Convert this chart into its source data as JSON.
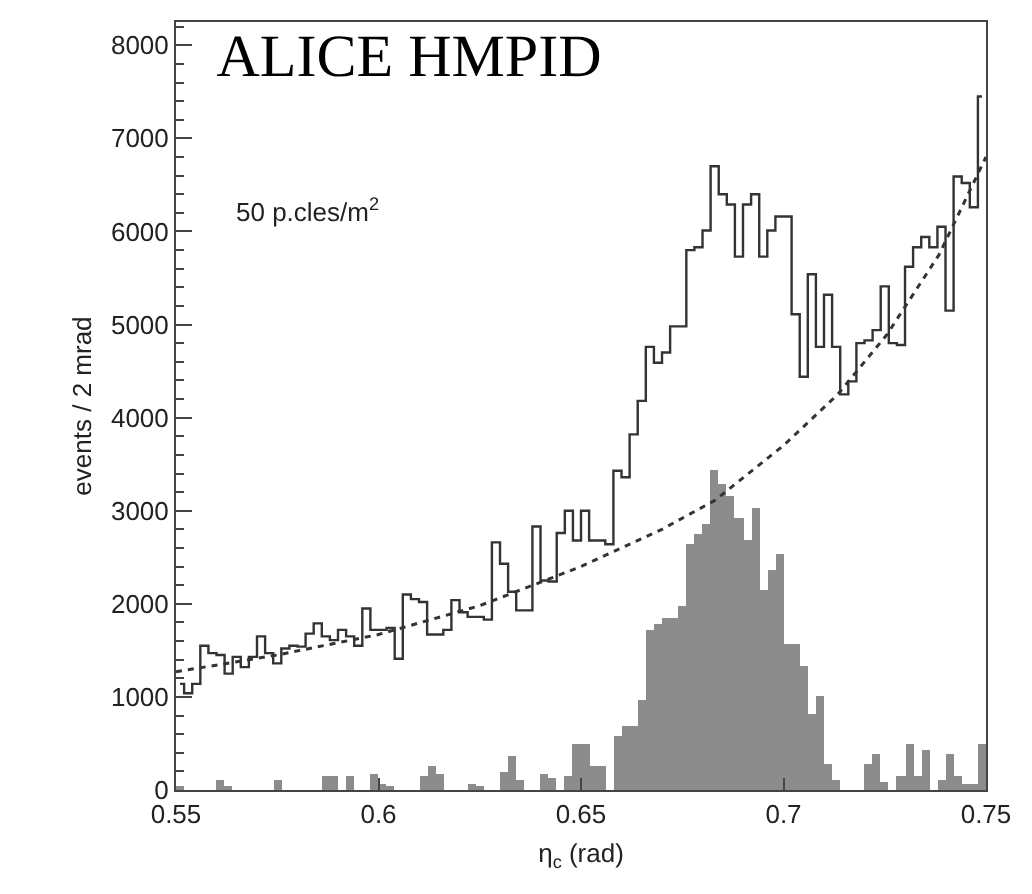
{
  "chart_data": {
    "type": "histogram",
    "title": "ALICE HMPID",
    "xlabel": "η$_{c}$ (rad)",
    "ylabel": "events / 2 mrad",
    "annotations": [
      "50 p.cles/m$^{2}$"
    ],
    "bins": [
      0.55,
      0.552,
      0.554,
      0.556,
      0.558,
      0.56,
      0.562,
      0.564,
      0.566,
      0.568,
      0.57,
      0.572,
      0.574,
      0.576,
      0.578,
      0.58,
      0.582,
      0.584,
      0.586,
      0.588,
      0.59,
      0.592,
      0.594,
      0.596,
      0.598,
      0.6,
      0.602,
      0.604,
      0.606,
      0.608,
      0.61,
      0.612,
      0.614,
      0.616,
      0.618,
      0.62,
      0.622,
      0.624,
      0.626,
      0.628,
      0.63,
      0.632,
      0.634,
      0.636,
      0.638,
      0.64,
      0.642,
      0.644,
      0.646,
      0.648,
      0.65,
      0.652,
      0.654,
      0.656,
      0.658,
      0.66,
      0.662,
      0.664,
      0.666,
      0.668,
      0.67,
      0.672,
      0.674,
      0.676,
      0.678,
      0.68,
      0.682,
      0.684,
      0.686,
      0.688,
      0.69,
      0.692,
      0.694,
      0.696,
      0.698,
      0.7,
      0.702,
      0.704,
      0.706,
      0.708,
      0.71,
      0.712,
      0.714,
      0.716,
      0.718,
      0.72,
      0.722,
      0.724,
      0.726,
      0.728,
      0.73,
      0.732,
      0.734,
      0.736,
      0.738,
      0.74,
      0.742,
      0.744,
      0.746,
      0.748,
      0.75
    ],
    "series": [
      {
        "type": "step",
        "color": "#333333",
        "x": [
          0.551,
          0.553,
          0.555,
          0.557,
          0.559,
          0.561,
          0.563,
          0.565,
          0.567,
          0.569,
          0.571,
          0.573,
          0.575,
          0.577,
          0.579,
          0.581,
          0.583,
          0.585,
          0.587,
          0.589,
          0.591,
          0.593,
          0.595,
          0.597,
          0.599,
          0.601,
          0.603,
          0.605,
          0.607,
          0.609,
          0.611,
          0.613,
          0.615,
          0.617,
          0.619,
          0.621,
          0.623,
          0.625,
          0.627,
          0.629,
          0.631,
          0.633,
          0.635,
          0.637,
          0.639,
          0.641,
          0.643,
          0.645,
          0.647,
          0.649,
          0.651,
          0.653,
          0.655,
          0.657,
          0.659,
          0.661,
          0.663,
          0.665,
          0.667,
          0.669,
          0.671,
          0.673,
          0.675,
          0.677,
          0.679,
          0.681,
          0.683,
          0.685,
          0.687,
          0.689,
          0.691,
          0.693,
          0.695,
          0.697,
          0.699,
          0.701,
          0.703,
          0.705,
          0.707,
          0.709,
          0.711,
          0.713,
          0.715,
          0.717,
          0.719,
          0.721,
          0.723,
          0.725,
          0.727,
          0.729,
          0.731,
          0.733,
          0.735,
          0.737,
          0.739,
          0.741,
          0.743,
          0.745,
          0.747,
          0.749
        ],
        "values": [
          1140,
          1040,
          1140,
          1550,
          1470,
          1450,
          1250,
          1430,
          1320,
          1430,
          1650,
          1470,
          1360,
          1520,
          1550,
          1540,
          1680,
          1790,
          1650,
          1610,
          1720,
          1650,
          1550,
          1950,
          1720,
          1720,
          1740,
          1410,
          2100,
          2050,
          2020,
          1670,
          1670,
          1720,
          2040,
          1910,
          1860,
          1860,
          1830,
          2660,
          2430,
          2130,
          1930,
          1930,
          2830,
          2250,
          2240,
          2760,
          3000,
          2680,
          3000,
          2680,
          2680,
          2640,
          3430,
          3360,
          3820,
          4180,
          4760,
          4590,
          4700,
          4980,
          4980,
          5800,
          5830,
          6010,
          6700,
          6400,
          6290,
          5730,
          6290,
          6400,
          5730,
          6010,
          6160,
          6160,
          5110,
          4440,
          5540,
          4760,
          5320,
          4760,
          4250,
          4390,
          4800,
          4830,
          4940,
          5410,
          4800,
          4780,
          5620,
          5830,
          5940,
          5830,
          6050,
          5150,
          6590,
          6520,
          6260,
          7450
        ]
      },
      {
        "color": "#8c8c8c",
        "values": [
          40,
          0,
          0,
          0,
          0,
          100,
          40,
          0,
          0,
          0,
          0,
          0,
          100,
          0,
          0,
          0,
          0,
          0,
          150,
          150,
          0,
          150,
          0,
          0,
          170,
          60,
          40,
          0,
          0,
          0,
          150,
          250,
          180,
          0,
          0,
          0,
          70,
          40,
          0,
          0,
          200,
          360,
          100,
          0,
          0,
          170,
          120,
          0,
          150,
          490,
          490,
          260,
          260,
          0,
          580,
          690,
          690,
          960,
          1720,
          1780,
          1850,
          1850,
          1970,
          2640,
          2740,
          2850,
          3430,
          3290,
          3150,
          2930,
          2680,
          3040,
          2150,
          2360,
          2540,
          1570,
          1570,
          1330,
          820,
          1000,
          280,
          100,
          0,
          0,
          0,
          280,
          380,
          80,
          0,
          150,
          490,
          150,
          420,
          0,
          100,
          380,
          150,
          60,
          60,
          490
        ]
      },
      {
        "type": "line",
        "color": "#333333",
        "line_style": "dotted",
        "x": [
          0.55,
          0.575,
          0.6,
          0.625,
          0.65,
          0.67,
          0.683,
          0.7,
          0.7134,
          0.7255,
          0.7384,
          0.75
        ],
        "values": [
          1270,
          1450,
          1670,
          1980,
          2400,
          2800,
          3110,
          3700,
          4250,
          4890,
          5750,
          6800
        ]
      }
    ],
    "xlim": [
      0.55,
      0.75
    ],
    "xticks": [
      0.55,
      0.6,
      0.65,
      0.7,
      0.75
    ],
    "ylim": [
      0,
      8250
    ],
    "yticks": [
      0,
      1000,
      2000,
      3000,
      4000,
      5000,
      6000,
      7000,
      8000
    ],
    "grid": false,
    "legend": false
  }
}
